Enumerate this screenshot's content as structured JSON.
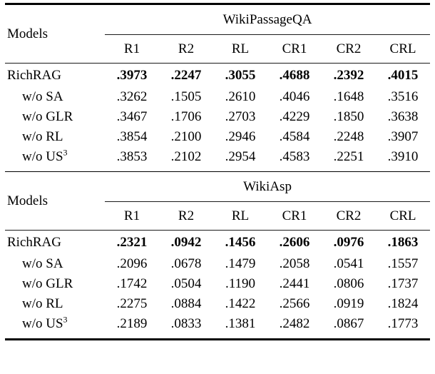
{
  "tables": [
    {
      "models_header": "Models",
      "dataset": "WikiPassageQA",
      "columns": [
        "R1",
        "R2",
        "RL",
        "CR1",
        "CR2",
        "CRL"
      ],
      "rows": [
        {
          "label": "RichRAG",
          "sup": "",
          "values": [
            ".3973",
            ".2247",
            ".3055",
            ".4688",
            ".2392",
            ".4015"
          ]
        },
        {
          "label": "w/o SA",
          "sup": "",
          "values": [
            ".3262",
            ".1505",
            ".2610",
            ".4046",
            ".1648",
            ".3516"
          ]
        },
        {
          "label": "w/o GLR",
          "sup": "",
          "values": [
            ".3467",
            ".1706",
            ".2703",
            ".4229",
            ".1850",
            ".3638"
          ]
        },
        {
          "label": "w/o RL",
          "sup": "",
          "values": [
            ".3854",
            ".2100",
            ".2946",
            ".4584",
            ".2248",
            ".3907"
          ]
        },
        {
          "label": "w/o US",
          "sup": "3",
          "values": [
            ".3853",
            ".2102",
            ".2954",
            ".4583",
            ".2251",
            ".3910"
          ]
        }
      ]
    },
    {
      "models_header": "Models",
      "dataset": "WikiAsp",
      "columns": [
        "R1",
        "R2",
        "RL",
        "CR1",
        "CR2",
        "CRL"
      ],
      "rows": [
        {
          "label": "RichRAG",
          "sup": "",
          "values": [
            ".2321",
            ".0942",
            ".1456",
            ".2606",
            ".0976",
            ".1863"
          ]
        },
        {
          "label": "w/o SA",
          "sup": "",
          "values": [
            ".2096",
            ".0678",
            ".1479",
            ".2058",
            ".0541",
            ".1557"
          ]
        },
        {
          "label": "w/o GLR",
          "sup": "",
          "values": [
            ".1742",
            ".0504",
            ".1190",
            ".2441",
            ".0806",
            ".1737"
          ]
        },
        {
          "label": "w/o RL",
          "sup": "",
          "values": [
            ".2275",
            ".0884",
            ".1422",
            ".2566",
            ".0919",
            ".1824"
          ]
        },
        {
          "label": "w/o US",
          "sup": "3",
          "values": [
            ".2189",
            ".0833",
            ".1381",
            ".2482",
            ".0867",
            ".1773"
          ]
        }
      ]
    }
  ]
}
